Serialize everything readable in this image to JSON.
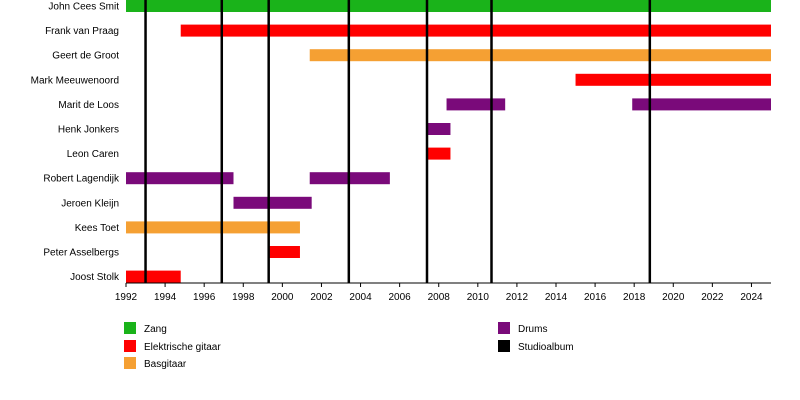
{
  "chart_data": {
    "type": "timeline",
    "x_range": [
      1992,
      2025
    ],
    "x_ticks": [
      "1992",
      "1994",
      "1996",
      "1998",
      "2000",
      "2002",
      "2004",
      "2006",
      "2008",
      "2010",
      "2012",
      "2014",
      "2016",
      "2018",
      "2020",
      "2022",
      "2024"
    ],
    "colors": {
      "Zang": "#1ab31a",
      "Elektrische gitaar": "#ff0000",
      "Basgitaar": "#f5a033",
      "Drums": "#7a0a7a",
      "Studioalbum": "#000000"
    },
    "members": [
      {
        "name": "John Cees Smit",
        "bars": [
          {
            "role": "Zang",
            "start": 1992.0,
            "end": 2025.0
          }
        ]
      },
      {
        "name": "Frank van Praag",
        "bars": [
          {
            "role": "Elektrische gitaar",
            "start": 1994.8,
            "end": 2025.0
          }
        ]
      },
      {
        "name": "Geert de Groot",
        "bars": [
          {
            "role": "Basgitaar",
            "start": 2001.4,
            "end": 2025.0
          }
        ]
      },
      {
        "name": "Mark Meeuwenoord",
        "bars": [
          {
            "role": "Elektrische gitaar",
            "start": 2015.0,
            "end": 2025.0
          }
        ]
      },
      {
        "name": "Marit de Loos",
        "bars": [
          {
            "role": "Drums",
            "start": 2008.4,
            "end": 2011.4
          },
          {
            "role": "Drums",
            "start": 2017.9,
            "end": 2025.0
          }
        ]
      },
      {
        "name": "Henk Jonkers",
        "bars": [
          {
            "role": "Drums",
            "start": 2007.4,
            "end": 2008.6
          }
        ]
      },
      {
        "name": "Leon Caren",
        "bars": [
          {
            "role": "Elektrische gitaar",
            "start": 2007.4,
            "end": 2008.6
          }
        ]
      },
      {
        "name": "Robert Lagendijk",
        "bars": [
          {
            "role": "Drums",
            "start": 1992.0,
            "end": 1997.5
          },
          {
            "role": "Drums",
            "start": 2001.4,
            "end": 2005.5
          }
        ]
      },
      {
        "name": "Jeroen Kleijn",
        "bars": [
          {
            "role": "Drums",
            "start": 1997.5,
            "end": 2001.5
          }
        ]
      },
      {
        "name": "Kees Toet",
        "bars": [
          {
            "role": "Basgitaar",
            "start": 1992.0,
            "end": 2000.9
          }
        ]
      },
      {
        "name": "Peter Asselbergs",
        "bars": [
          {
            "role": "Elektrische gitaar",
            "start": 1999.3,
            "end": 2000.9
          }
        ]
      },
      {
        "name": "Joost Stolk",
        "bars": [
          {
            "role": "Elektrische gitaar",
            "start": 1992.0,
            "end": 1994.8
          }
        ]
      }
    ],
    "albums": [
      1993.0,
      1996.9,
      1999.3,
      2003.4,
      2007.4,
      2010.7,
      2018.8
    ],
    "legend": [
      {
        "label": "Zang",
        "color_key": "Zang"
      },
      {
        "label": "Elektrische gitaar",
        "color_key": "Elektrische gitaar"
      },
      {
        "label": "Basgitaar",
        "color_key": "Basgitaar"
      },
      {
        "label": "Drums",
        "color_key": "Drums"
      },
      {
        "label": "Studioalbum",
        "color_key": "Studioalbum"
      }
    ]
  }
}
